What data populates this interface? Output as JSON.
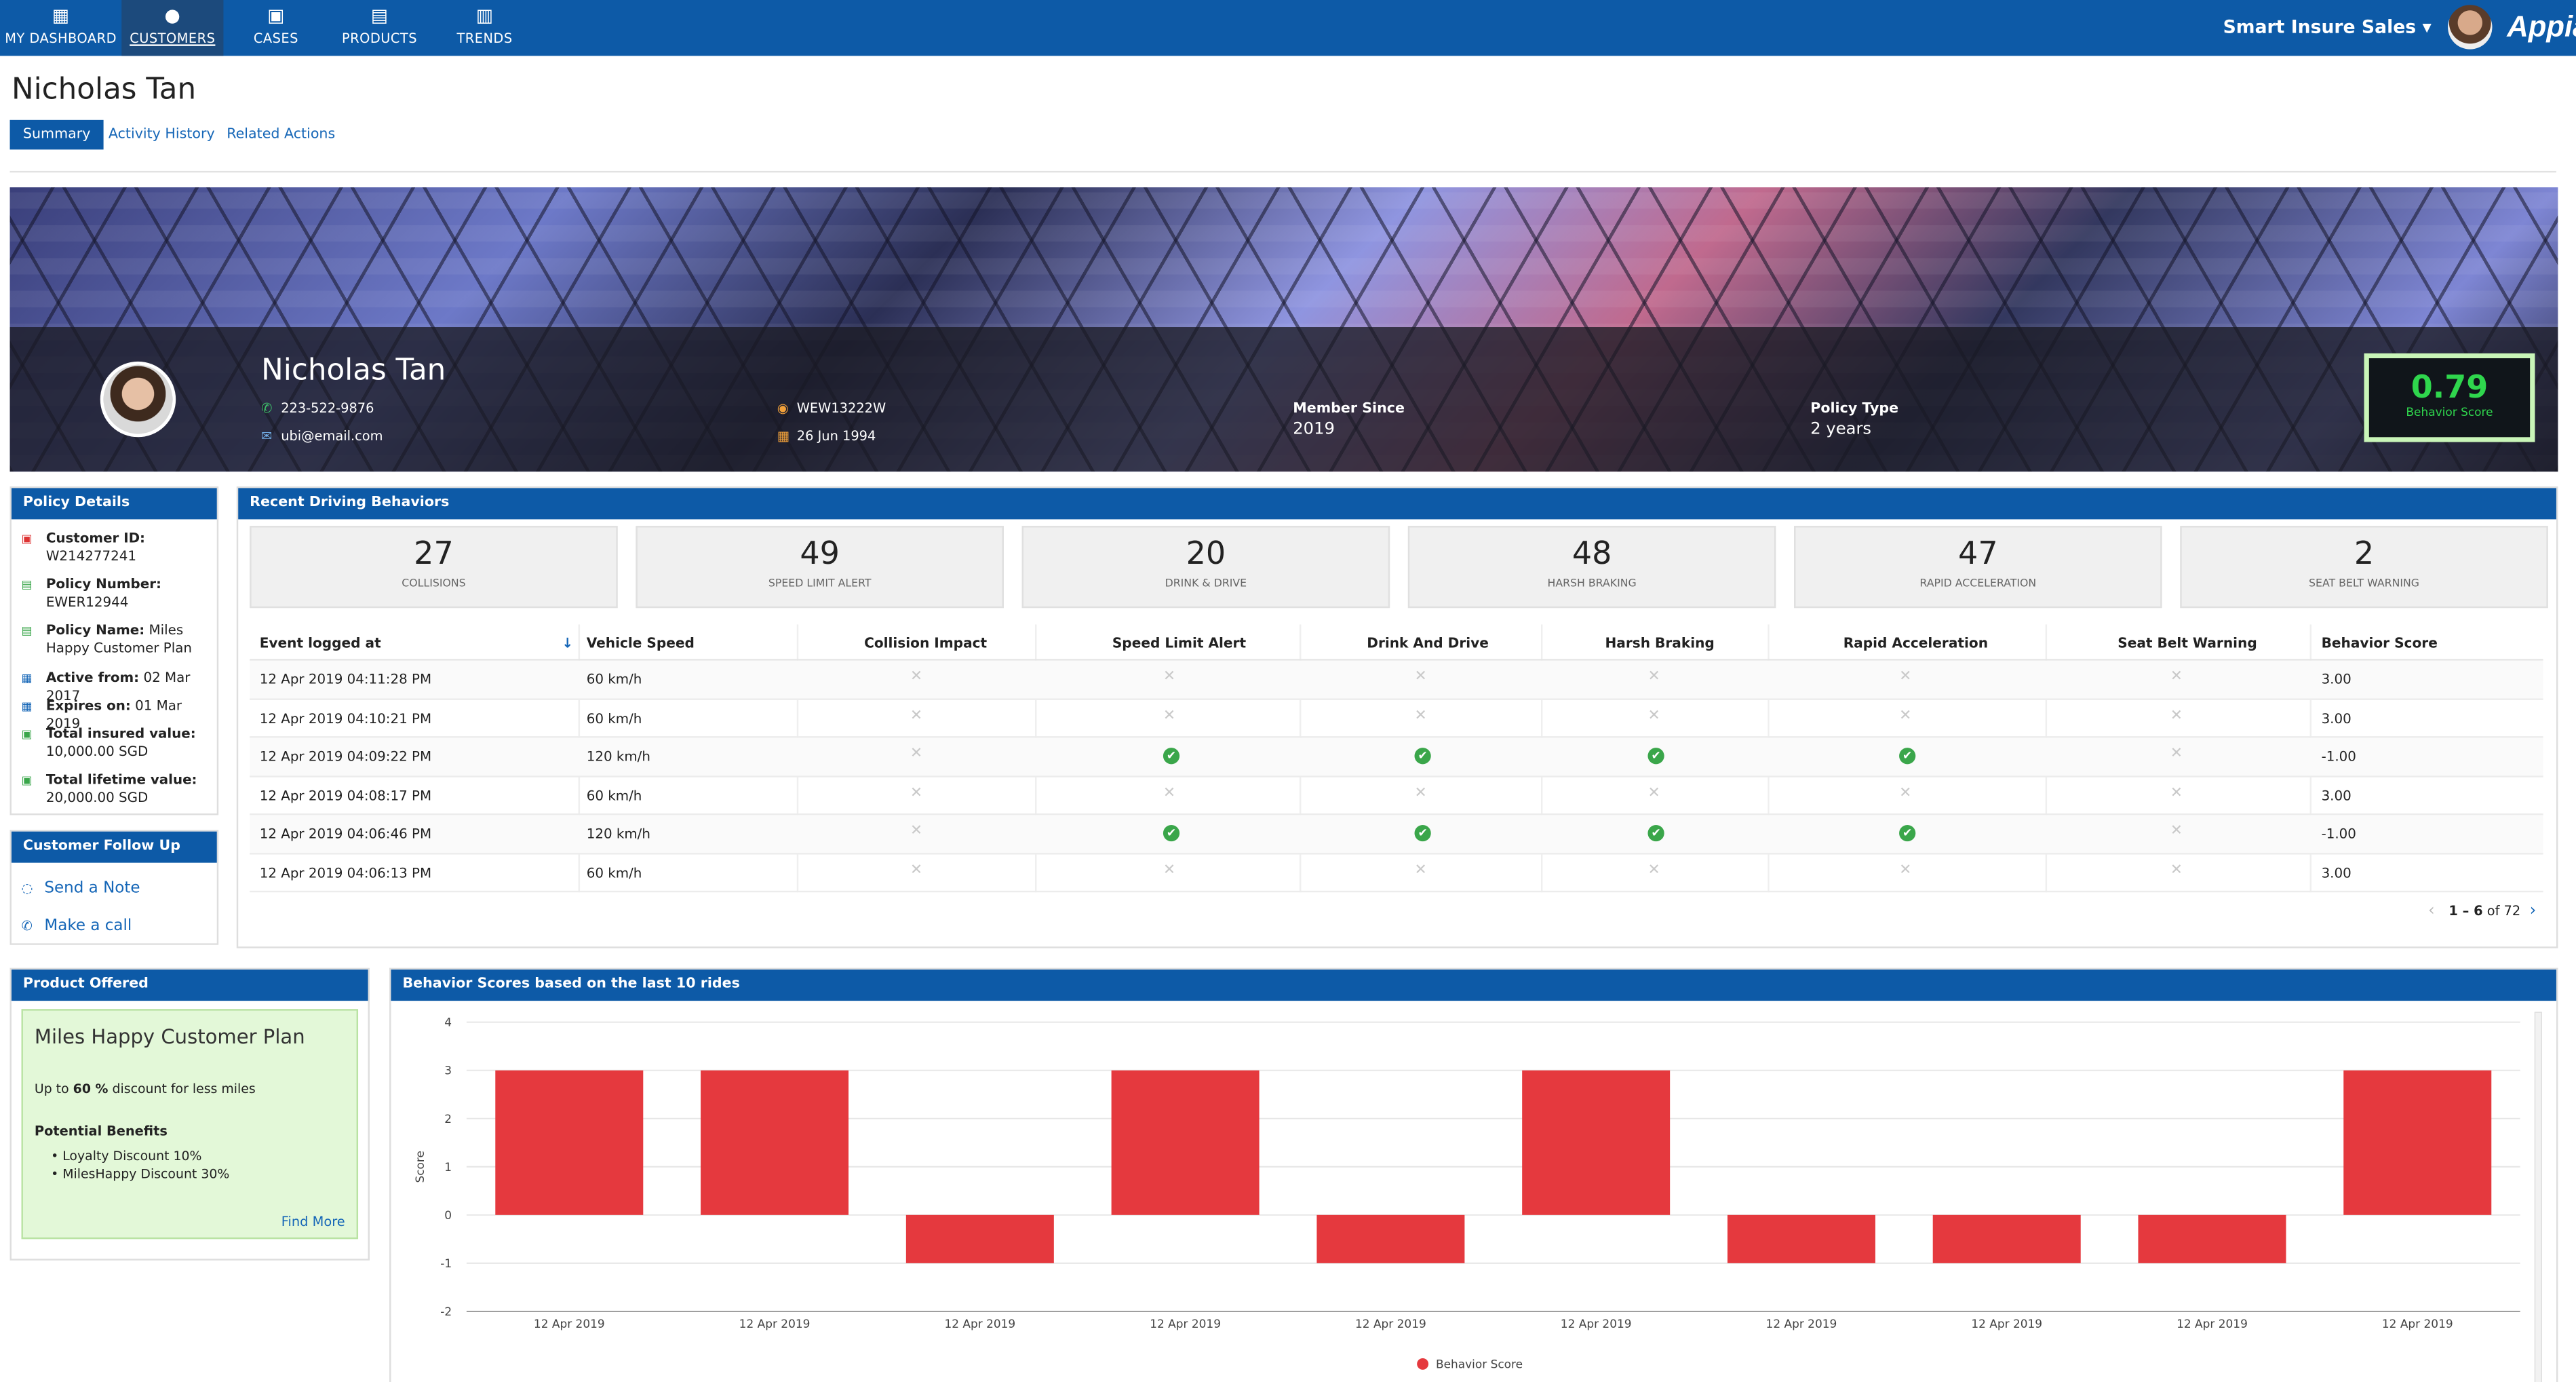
{
  "nav": {
    "items": [
      {
        "label": "MY DASHBOARD",
        "icon": "grid-icon"
      },
      {
        "label": "CUSTOMERS",
        "icon": "person-icon"
      },
      {
        "label": "CASES",
        "icon": "inbox-icon"
      },
      {
        "label": "PRODUCTS",
        "icon": "document-icon"
      },
      {
        "label": "TRENDS",
        "icon": "bar-chart-icon"
      }
    ],
    "app_name": "Smart Insure Sales",
    "brand": "Appian"
  },
  "page": {
    "title": "Nicholas Tan",
    "tabs": [
      "Summary",
      "Activity History",
      "Related Actions"
    ]
  },
  "banner": {
    "name": "Nicholas Tan",
    "phone": "223-522-9876",
    "email": "ubi@email.com",
    "vehicle": "WEW13222W",
    "birthdate": "26 Jun 1994",
    "member_since_label": "Member Since",
    "member_since": "2019",
    "policy_type_label": "Policy Type",
    "policy_type": "2 years",
    "score": "0.79",
    "score_label": "Behavior Score"
  },
  "policy": {
    "header": "Policy Details",
    "customer_id_label": "Customer ID:",
    "customer_id": "W214277241",
    "policy_number_label": "Policy Number:",
    "policy_number": "EWER12944",
    "policy_name_label": "Policy Name:",
    "policy_name_a": "Miles",
    "policy_name_b": "Happy Customer  Plan",
    "active_from_label": "Active from:",
    "active_from": "02 Mar 2017",
    "expires_label": "Expires on:",
    "expires": "01 Mar 2019",
    "insured_label": "Total insured value:",
    "insured": "10,000.00 SGD",
    "lifetime_label": "Total lifetime value:",
    "lifetime": "20,000.00 SGD"
  },
  "followup": {
    "header": "Customer Follow Up",
    "send_note": "Send a Note",
    "make_call": "Make a call"
  },
  "behaviors": {
    "header": "Recent Driving Behaviors",
    "tiles": [
      {
        "value": "27",
        "label": "COLLISIONS"
      },
      {
        "value": "49",
        "label": "SPEED LIMIT ALERT"
      },
      {
        "value": "20",
        "label": "DRINK & DRIVE"
      },
      {
        "value": "48",
        "label": "HARSH BRAKING"
      },
      {
        "value": "47",
        "label": "RAPID ACCELERATION"
      },
      {
        "value": "2",
        "label": "SEAT BELT WARNING"
      }
    ],
    "columns": [
      "Event logged at",
      "Vehicle Speed",
      "Collision Impact",
      "Speed Limit Alert",
      "Drink And Drive",
      "Harsh Braking",
      "Rapid Acceleration",
      "Seat Belt Warning",
      "Behavior Score"
    ],
    "rows": [
      {
        "time": "12 Apr 2019 04:11:28 PM",
        "speed": "60 km/h",
        "flags": [
          0,
          0,
          0,
          0,
          0,
          0
        ],
        "score": "3.00"
      },
      {
        "time": "12 Apr 2019 04:10:21 PM",
        "speed": "60 km/h",
        "flags": [
          0,
          0,
          0,
          0,
          0,
          0
        ],
        "score": "3.00"
      },
      {
        "time": "12 Apr 2019 04:09:22 PM",
        "speed": "120 km/h",
        "flags": [
          0,
          1,
          1,
          1,
          1,
          0
        ],
        "score": "-1.00"
      },
      {
        "time": "12 Apr 2019 04:08:17 PM",
        "speed": "60 km/h",
        "flags": [
          0,
          0,
          0,
          0,
          0,
          0
        ],
        "score": "3.00"
      },
      {
        "time": "12 Apr 2019 04:06:46 PM",
        "speed": "120 km/h",
        "flags": [
          0,
          1,
          1,
          1,
          1,
          0
        ],
        "score": "-1.00"
      },
      {
        "time": "12 Apr 2019 04:06:13 PM",
        "speed": "60 km/h",
        "flags": [
          0,
          0,
          0,
          0,
          0,
          0
        ],
        "score": "3.00"
      }
    ],
    "pager_range": "1 – 6",
    "pager_of": "of 72"
  },
  "product": {
    "header": "Product Offered",
    "title": "Miles Happy Customer  Plan",
    "line_prefix": "Up to",
    "line_pct": "60 %",
    "line_suffix": "discount for less miles",
    "benefits_label": "Potential Benefits",
    "benefits": [
      "Loyalty Discount 10%",
      "MilesHappy Discount 30%"
    ],
    "find_more": "Find More"
  },
  "chart_header": "Behavior Scores based on the last 10 rides",
  "chart_data": {
    "type": "bar",
    "title": "",
    "xlabel": "",
    "ylabel": "Score",
    "ylim": [
      -2,
      4
    ],
    "yticks": [
      4,
      3,
      2,
      1,
      0,
      -1,
      -2
    ],
    "categories": [
      "12 Apr 2019",
      "12 Apr 2019",
      "12 Apr 2019",
      "12 Apr 2019",
      "12 Apr 2019",
      "12 Apr 2019",
      "12 Apr 2019",
      "12 Apr 2019",
      "12 Apr 2019",
      "12 Apr 2019"
    ],
    "series": [
      {
        "name": "Behavior Score",
        "color": "#e5393e",
        "values": [
          3,
          3,
          -1,
          3,
          -1,
          3,
          -1,
          -1,
          -1,
          3
        ]
      }
    ],
    "grid": true,
    "legend": "bottom-center"
  }
}
